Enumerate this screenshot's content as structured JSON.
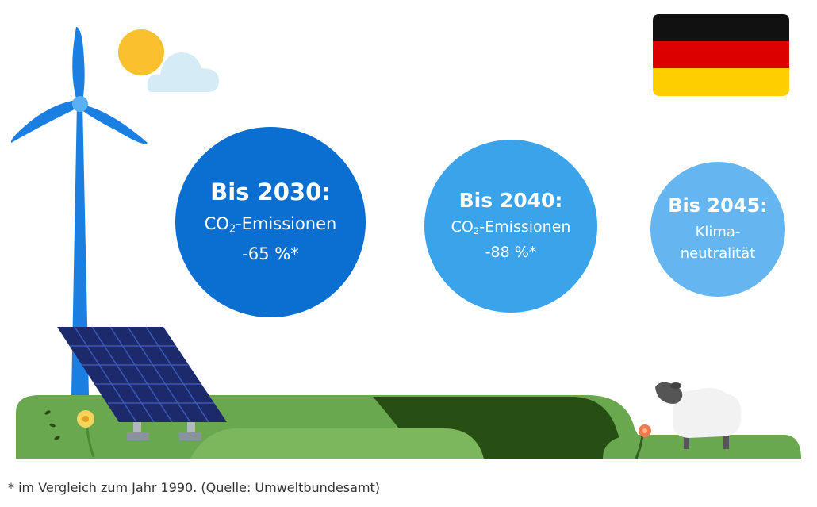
{
  "colors": {
    "circle_2030": "#0a6fd1",
    "circle_2040": "#3aa3ea",
    "circle_2045": "#64b5f0",
    "turbine": "#1a7fe0",
    "grass_light": "#6aa84f",
    "grass_dark": "#274e13",
    "solar_panel": "#1c2a6b",
    "sun": "#fbc02d",
    "cloud": "#d5ecf7"
  },
  "icons": [
    "wind-turbine-icon",
    "sun-icon",
    "cloud-icon",
    "solar-panel-icon",
    "flag-germany-icon",
    "sheep-icon",
    "flower-icon"
  ],
  "milestones": [
    {
      "heading": "Bis 2030:",
      "line1_pre": "CO",
      "line1_sub": "2",
      "line1_post": "-Emissionen",
      "line2": "-65 %*"
    },
    {
      "heading": "Bis 2040:",
      "line1_pre": "CO",
      "line1_sub": "2",
      "line1_post": "-Emissionen",
      "line2": "-88 %*"
    },
    {
      "heading": "Bis 2045:",
      "line1": "Klima-",
      "line2": "neutralität"
    }
  ],
  "footnote": "* im Vergleich zum Jahr 1990. (Quelle: Umweltbundesamt)"
}
